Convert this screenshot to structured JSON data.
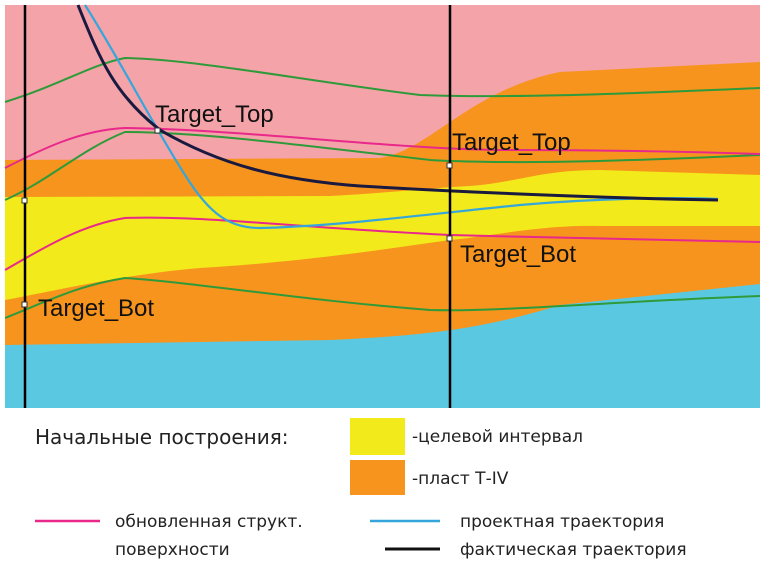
{
  "section": {
    "labels": [
      "Target_Top",
      "Target_Top",
      "Target_Bot",
      "Target_Bot"
    ]
  },
  "legend": {
    "heading": "Начальные построения:",
    "target_interval": "-целевой интервал",
    "layer": "-пласт Т-IV",
    "updated_surface": [
      "обновленная структ.",
      "поверхности"
    ],
    "planned_trajectory": "проектная траектория",
    "actual_trajectory": "фактическая траектория"
  }
}
